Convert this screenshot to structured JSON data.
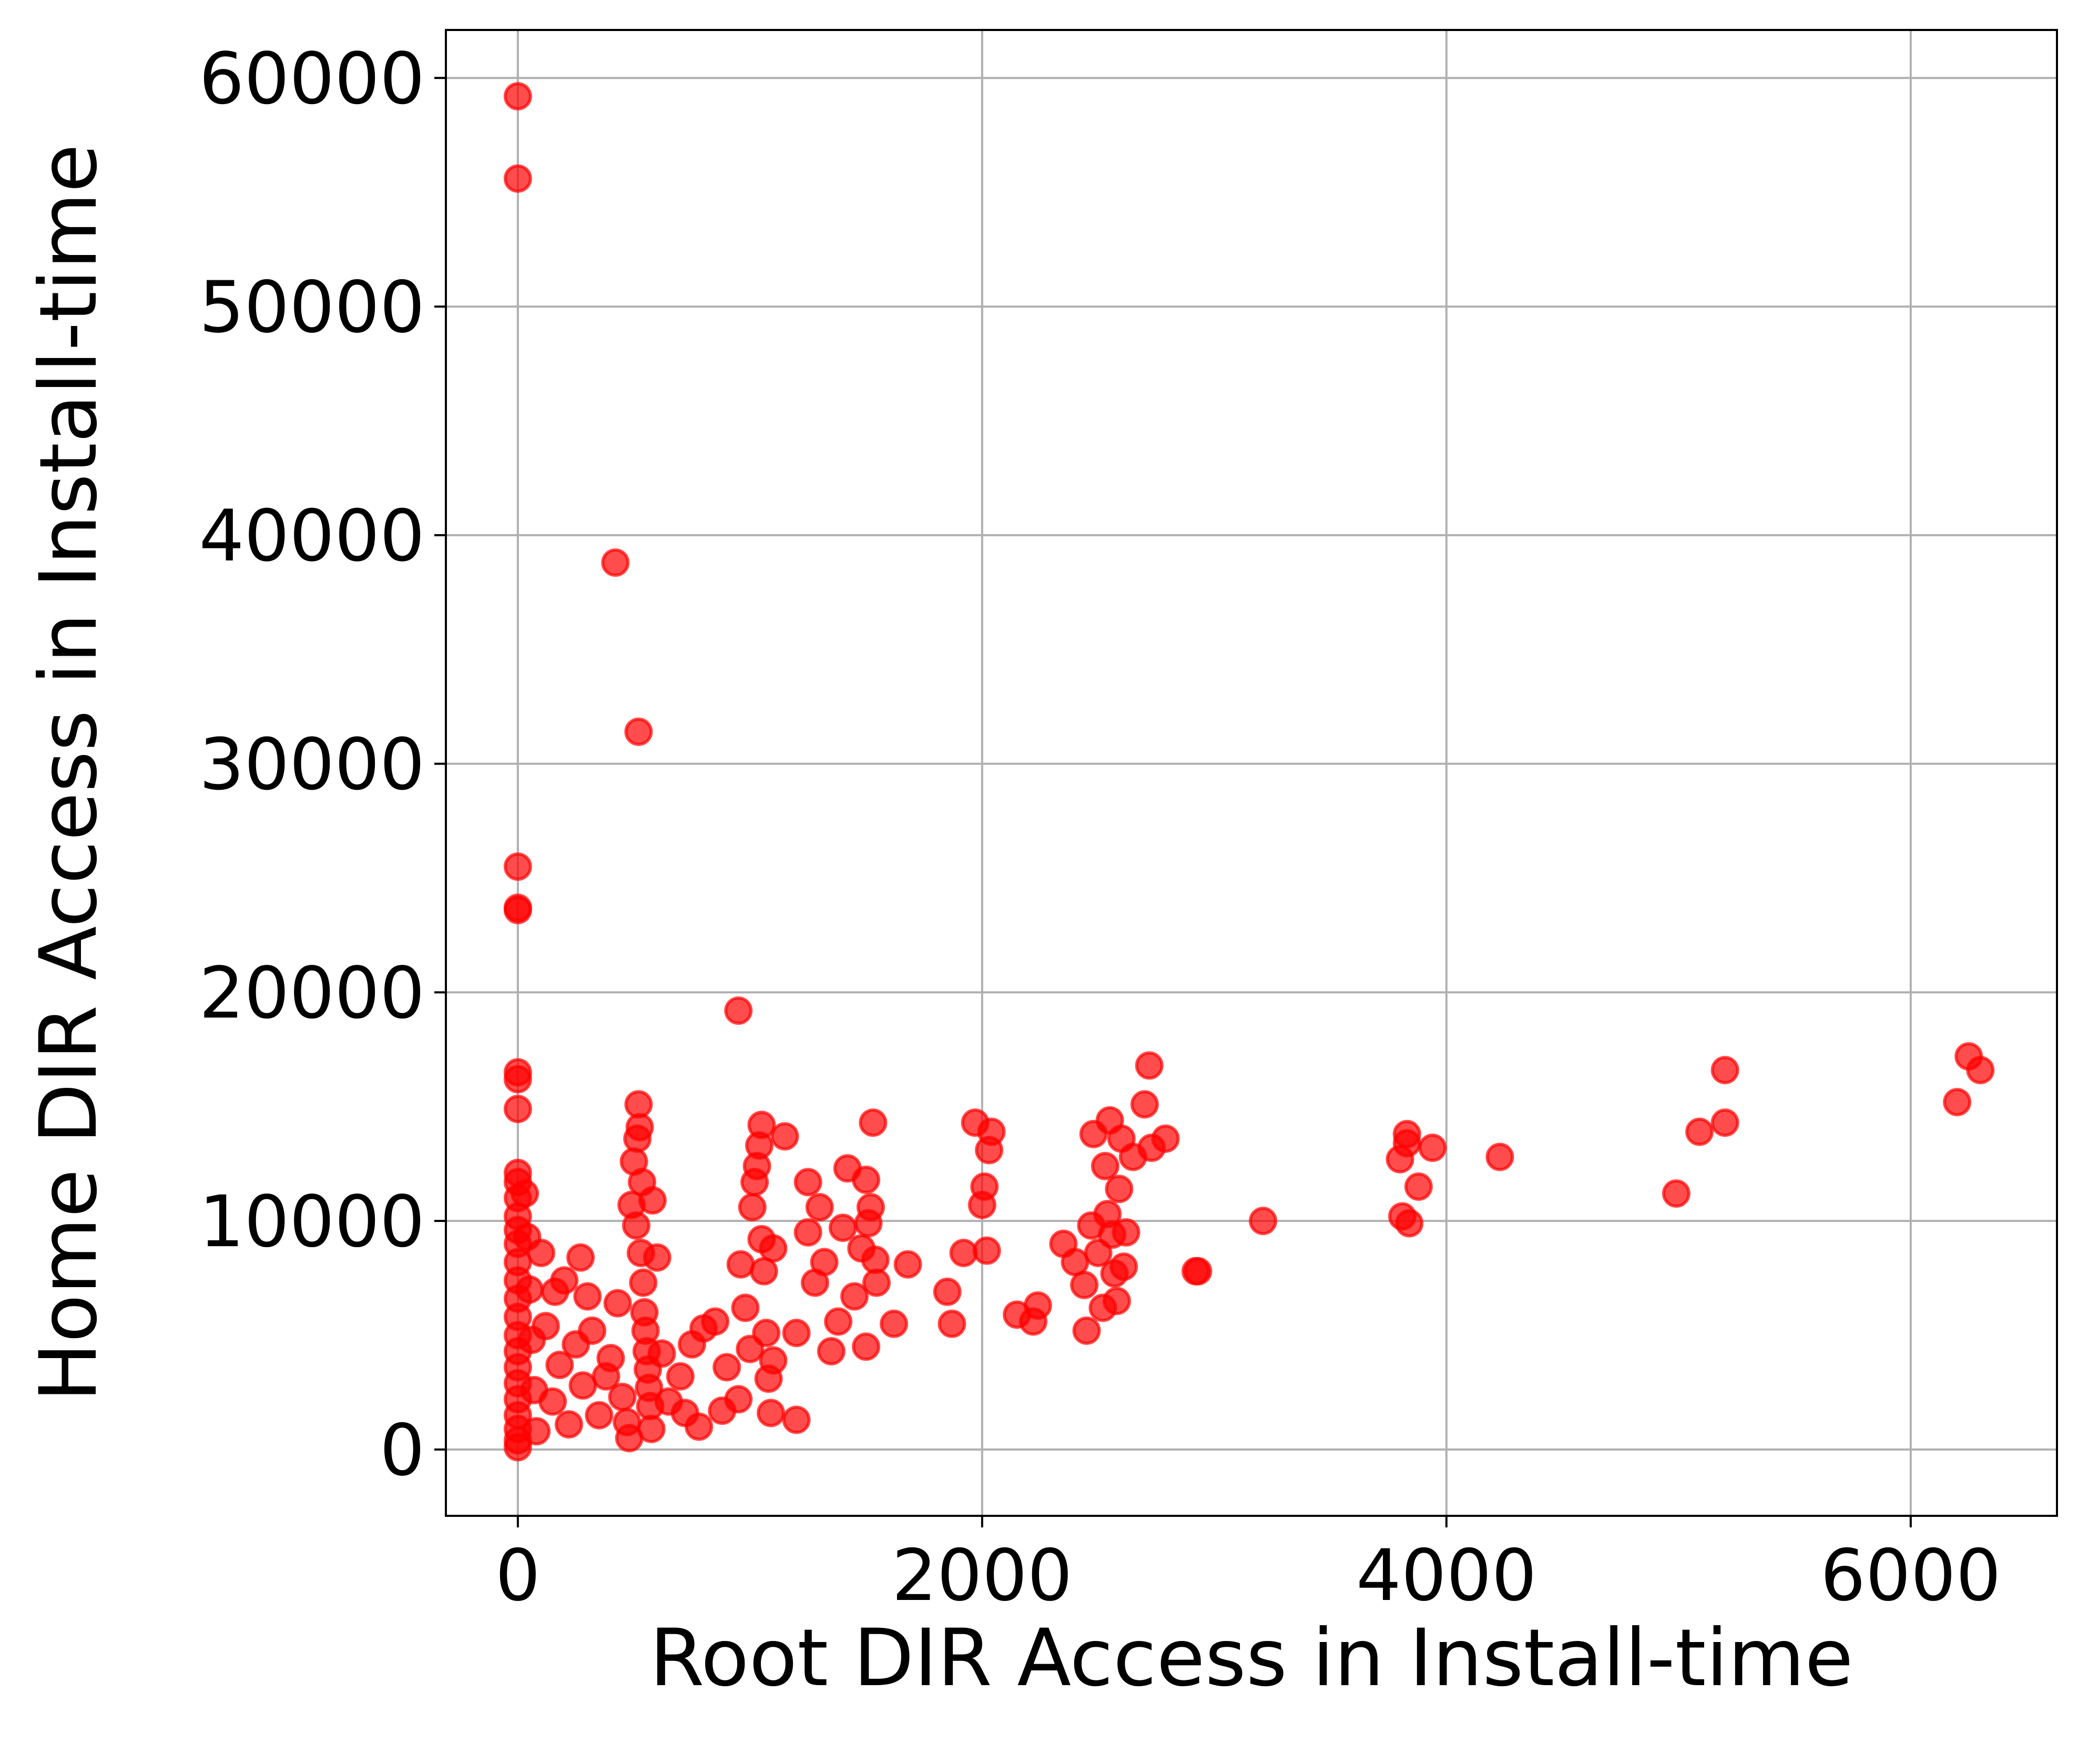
{
  "chart_data": {
    "type": "scatter",
    "xlabel": "Root DIR Access in Install-time",
    "ylabel": "Home DIR Access in Install-time",
    "xlim": [
      -310,
      6630
    ],
    "ylim": [
      -2900,
      62100
    ],
    "xticks": [
      0,
      2000,
      4000,
      6000
    ],
    "yticks": [
      0,
      10000,
      20000,
      30000,
      40000,
      50000,
      60000
    ],
    "xtick_labels": [
      "0",
      "2000",
      "4000",
      "6000"
    ],
    "ytick_labels": [
      "0",
      "10000",
      "20000",
      "30000",
      "40000",
      "50000",
      "60000"
    ],
    "grid": true,
    "marker_color": "#ff0000",
    "marker_alpha": 0.7,
    "series": [
      {
        "points": [
          [
            0,
            59200
          ],
          [
            0,
            55600
          ],
          [
            0,
            25500
          ],
          [
            0,
            23700
          ],
          [
            0,
            23600
          ],
          [
            0,
            16500
          ],
          [
            0,
            16200
          ],
          [
            0,
            14900
          ],
          [
            0,
            12100
          ],
          [
            0,
            11700
          ],
          [
            0,
            11000
          ],
          [
            0,
            10200
          ],
          [
            0,
            9600
          ],
          [
            0,
            9000
          ],
          [
            0,
            8200
          ],
          [
            0,
            7400
          ],
          [
            0,
            6600
          ],
          [
            0,
            5800
          ],
          [
            0,
            5000
          ],
          [
            0,
            4300
          ],
          [
            0,
            3600
          ],
          [
            0,
            2900
          ],
          [
            0,
            2200
          ],
          [
            0,
            1500
          ],
          [
            0,
            900
          ],
          [
            0,
            400
          ],
          [
            0,
            100
          ],
          [
            30,
            11200
          ],
          [
            40,
            9300
          ],
          [
            50,
            7000
          ],
          [
            60,
            4800
          ],
          [
            70,
            2600
          ],
          [
            80,
            800
          ],
          [
            100,
            8600
          ],
          [
            120,
            5400
          ],
          [
            150,
            2100
          ],
          [
            160,
            6900
          ],
          [
            180,
            3700
          ],
          [
            200,
            7400
          ],
          [
            220,
            1100
          ],
          [
            250,
            4600
          ],
          [
            270,
            8400
          ],
          [
            280,
            2800
          ],
          [
            300,
            6700
          ],
          [
            320,
            5200
          ],
          [
            350,
            1500
          ],
          [
            380,
            3200
          ],
          [
            400,
            4000
          ],
          [
            420,
            38800
          ],
          [
            430,
            6400
          ],
          [
            450,
            2300
          ],
          [
            470,
            1200
          ],
          [
            480,
            500
          ],
          [
            490,
            10700
          ],
          [
            500,
            12600
          ],
          [
            510,
            9800
          ],
          [
            515,
            13600
          ],
          [
            520,
            31400
          ],
          [
            520,
            15100
          ],
          [
            525,
            14100
          ],
          [
            530,
            8600
          ],
          [
            535,
            11700
          ],
          [
            540,
            7300
          ],
          [
            545,
            6000
          ],
          [
            550,
            5200
          ],
          [
            555,
            4300
          ],
          [
            560,
            3500
          ],
          [
            565,
            2700
          ],
          [
            570,
            1900
          ],
          [
            575,
            900
          ],
          [
            580,
            10900
          ],
          [
            600,
            8400
          ],
          [
            620,
            4200
          ],
          [
            650,
            2100
          ],
          [
            700,
            3200
          ],
          [
            720,
            1600
          ],
          [
            750,
            4600
          ],
          [
            780,
            1000
          ],
          [
            800,
            5300
          ],
          [
            850,
            5600
          ],
          [
            880,
            1700
          ],
          [
            900,
            3600
          ],
          [
            950,
            2200
          ],
          [
            950,
            19200
          ],
          [
            960,
            8100
          ],
          [
            980,
            6200
          ],
          [
            1000,
            4400
          ],
          [
            1010,
            10600
          ],
          [
            1020,
            11700
          ],
          [
            1030,
            12400
          ],
          [
            1040,
            13300
          ],
          [
            1050,
            9200
          ],
          [
            1060,
            7800
          ],
          [
            1070,
            5100
          ],
          [
            1080,
            3100
          ],
          [
            1090,
            1600
          ],
          [
            1050,
            14200
          ],
          [
            1100,
            8800
          ],
          [
            1100,
            3900
          ],
          [
            1150,
            13700
          ],
          [
            1200,
            5100
          ],
          [
            1200,
            1300
          ],
          [
            1250,
            9500
          ],
          [
            1250,
            11700
          ],
          [
            1280,
            7300
          ],
          [
            1300,
            10600
          ],
          [
            1320,
            8200
          ],
          [
            1350,
            4300
          ],
          [
            1380,
            5600
          ],
          [
            1400,
            9700
          ],
          [
            1420,
            12300
          ],
          [
            1450,
            6700
          ],
          [
            1480,
            8800
          ],
          [
            1500,
            11800
          ],
          [
            1500,
            4500
          ],
          [
            1510,
            9900
          ],
          [
            1520,
            10600
          ],
          [
            1530,
            14300
          ],
          [
            1540,
            8300
          ],
          [
            1545,
            7300
          ],
          [
            1620,
            5500
          ],
          [
            1680,
            8100
          ],
          [
            1850,
            6900
          ],
          [
            1870,
            5500
          ],
          [
            1920,
            8600
          ],
          [
            1970,
            14300
          ],
          [
            2000,
            10700
          ],
          [
            2010,
            11500
          ],
          [
            2020,
            8700
          ],
          [
            2030,
            13100
          ],
          [
            2040,
            13900
          ],
          [
            2150,
            5900
          ],
          [
            2220,
            5600
          ],
          [
            2240,
            6300
          ],
          [
            2350,
            9000
          ],
          [
            2400,
            8200
          ],
          [
            2440,
            7200
          ],
          [
            2450,
            5200
          ],
          [
            2470,
            9800
          ],
          [
            2480,
            13800
          ],
          [
            2500,
            8600
          ],
          [
            2520,
            6200
          ],
          [
            2530,
            12400
          ],
          [
            2540,
            10300
          ],
          [
            2550,
            14400
          ],
          [
            2560,
            9400
          ],
          [
            2570,
            7700
          ],
          [
            2580,
            6500
          ],
          [
            2590,
            11400
          ],
          [
            2600,
            13600
          ],
          [
            2610,
            8000
          ],
          [
            2620,
            9500
          ],
          [
            2650,
            12800
          ],
          [
            2700,
            15100
          ],
          [
            2720,
            16800
          ],
          [
            2730,
            13200
          ],
          [
            2790,
            13600
          ],
          [
            2920,
            7800
          ],
          [
            2930,
            7800
          ],
          [
            3210,
            10000
          ],
          [
            3800,
            12700
          ],
          [
            3810,
            10200
          ],
          [
            3840,
            9900
          ],
          [
            3830,
            13400
          ],
          [
            3830,
            13800
          ],
          [
            3880,
            11500
          ],
          [
            3940,
            13200
          ],
          [
            4230,
            12800
          ],
          [
            4990,
            11200
          ],
          [
            5090,
            13900
          ],
          [
            5200,
            14300
          ],
          [
            5200,
            16600
          ],
          [
            6200,
            15200
          ],
          [
            6250,
            17200
          ],
          [
            6300,
            16600
          ]
        ]
      }
    ]
  }
}
